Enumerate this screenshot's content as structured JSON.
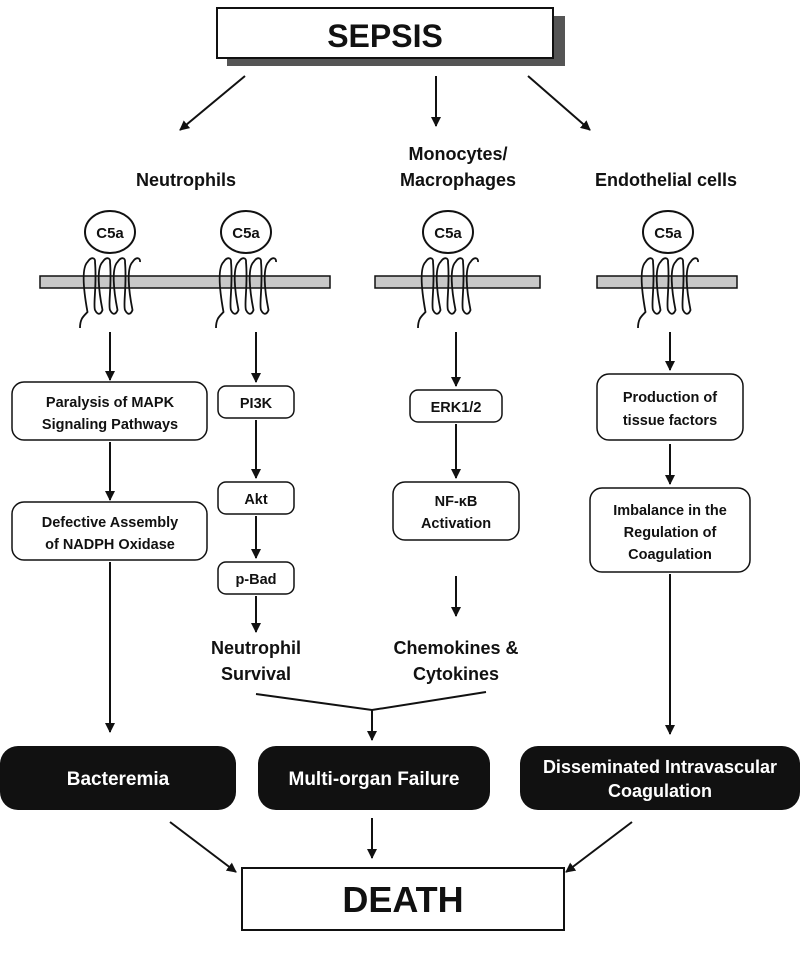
{
  "top_box": {
    "label": "SEPSIS"
  },
  "bottom_box": {
    "label": "DEATH"
  },
  "columns": {
    "neutrophils": {
      "line1": "Neutrophils"
    },
    "monocytes": {
      "line1": "Monocytes/",
      "line2": "Macrophages"
    },
    "endothelial": {
      "line1": "Endothelial cells"
    }
  },
  "receptor_label": "C5a",
  "boxes": {
    "mapk": {
      "line1": "Paralysis of MAPK",
      "line2": "Signaling Pathways"
    },
    "nadph": {
      "line1": "Defective Assembly",
      "line2": "of NADPH Oxidase"
    },
    "pi3k": {
      "line1": "PI3K"
    },
    "akt": {
      "line1": "Akt"
    },
    "pbad": {
      "line1": "p-Bad"
    },
    "erk": {
      "line1": "ERK1/2"
    },
    "nfkb": {
      "line1": "NF-κB",
      "line2": "Activation"
    },
    "tissue": {
      "line1": "Production of",
      "line2": "tissue factors"
    },
    "imbalance": {
      "line1": "Imbalance in the",
      "line2": "Regulation of",
      "line3": "Coagulation"
    }
  },
  "labels": {
    "survival": {
      "line1": "Neutrophil",
      "line2": "Survival"
    },
    "chemokines": {
      "line1": "Chemokines &",
      "line2": "Cytokines"
    }
  },
  "outcomes": {
    "bacteremia": {
      "line1": "Bacteremia"
    },
    "mof": {
      "line1": "Multi-organ Failure"
    },
    "dic": {
      "line1": "Disseminated Intravascular",
      "line2": "Coagulation"
    }
  },
  "colors": {
    "membrane": "#c8c8c8",
    "outcome_fill": "#111111",
    "shadow": "#555555"
  }
}
